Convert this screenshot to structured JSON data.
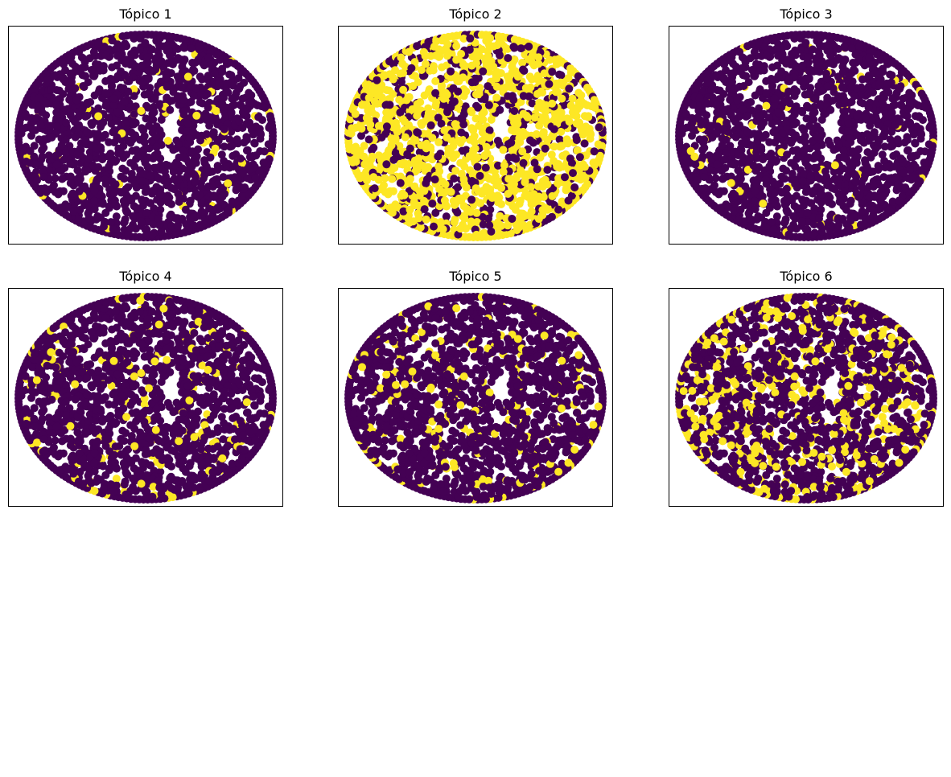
{
  "chart_data": [
    {
      "type": "scatter",
      "title": "Tópico 1",
      "colors": {
        "low": "#440154",
        "high": "#fde725"
      },
      "highlight_fraction": 0.03,
      "axes_visible": false
    },
    {
      "type": "scatter",
      "title": "Tópico 2",
      "colors": {
        "low": "#440154",
        "high": "#fde725"
      },
      "highlight_fraction": 0.7,
      "axes_visible": false
    },
    {
      "type": "scatter",
      "title": "Tópico 3",
      "colors": {
        "low": "#440154",
        "high": "#fde725"
      },
      "highlight_fraction": 0.03,
      "axes_visible": false
    },
    {
      "type": "scatter",
      "title": "Tópico 4",
      "colors": {
        "low": "#440154",
        "high": "#fde725"
      },
      "highlight_fraction": 0.08,
      "axes_visible": false
    },
    {
      "type": "scatter",
      "title": "Tópico 5",
      "colors": {
        "low": "#440154",
        "high": "#fde725"
      },
      "highlight_fraction": 0.1,
      "axes_visible": false
    },
    {
      "type": "scatter",
      "title": "Tópico 6",
      "colors": {
        "low": "#440154",
        "high": "#fde725"
      },
      "highlight_fraction": 0.25,
      "axes_visible": false
    }
  ]
}
